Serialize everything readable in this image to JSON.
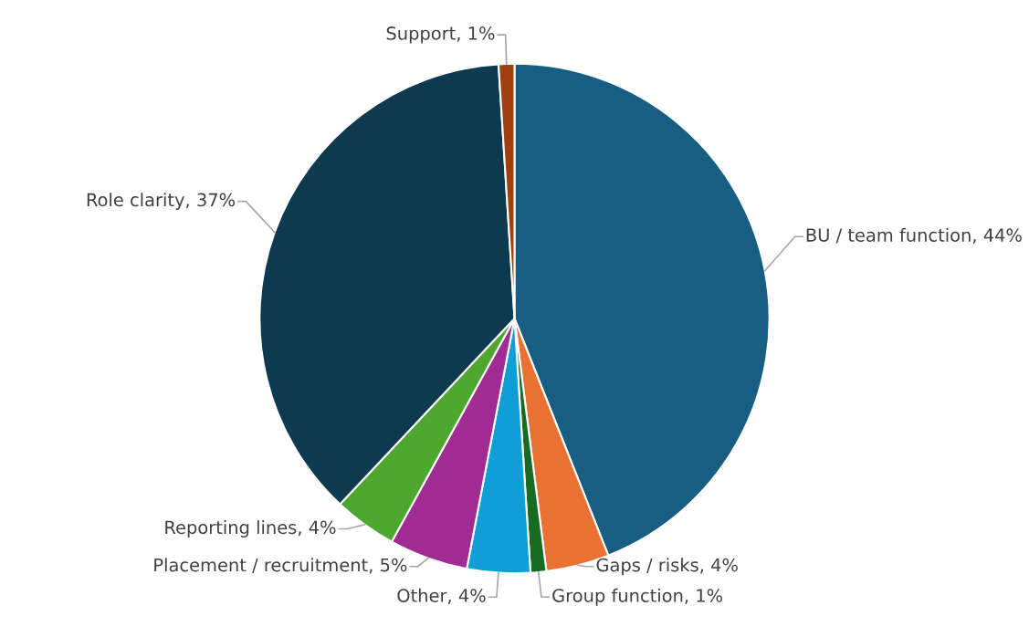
{
  "chart_data": {
    "type": "pie",
    "categories": [
      "BU / team function",
      "Gaps / risks",
      "Group function",
      "Other",
      "Placement / recruitment",
      "Reporting lines",
      "Role clarity",
      "Support"
    ],
    "values": [
      44,
      4,
      1,
      4,
      5,
      4,
      37,
      1
    ],
    "value_labels": [
      "44%",
      "4%",
      "1%",
      "4%",
      "5%",
      "4%",
      "37%",
      "1%"
    ],
    "colors": [
      "#175e82",
      "#e97132",
      "#196b24",
      "#0f9ed5",
      "#a02b93",
      "#4ea72e",
      "#0e3a50",
      "#a0400f"
    ],
    "legend": false
  }
}
